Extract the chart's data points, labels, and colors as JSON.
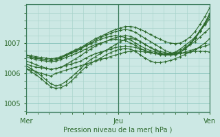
{
  "bg_color": "#cce8e4",
  "plot_bg_color": "#cce8e4",
  "line_color": "#2d6a2d",
  "grid_color": "#aad4cc",
  "tick_color": "#2d6a2d",
  "xlabel": "Pression niveau de la mer( hPa )",
  "ylim": [
    1004.7,
    1008.3
  ],
  "yticks": [
    1005,
    1006,
    1007
  ],
  "day_ticks": [
    0,
    24,
    48
  ],
  "day_labels": [
    "Mer",
    "Jeu",
    "Ven"
  ],
  "vlines": [
    0,
    24,
    48
  ],
  "series": [
    [
      1006.15,
      1006.1,
      1006.05,
      1006.0,
      1005.95,
      1005.9,
      1006.0,
      1006.05,
      1006.1,
      1006.15,
      1006.2,
      1006.25,
      1006.3,
      1006.35,
      1006.4,
      1006.45,
      1006.5,
      1006.55,
      1006.6,
      1006.65,
      1006.7,
      1006.72,
      1006.75,
      1006.72,
      1006.7,
      1006.68,
      1006.65,
      1006.63,
      1006.62,
      1006.62,
      1006.63,
      1006.65,
      1006.67,
      1006.7,
      1006.72,
      1006.73,
      1006.72,
      1006.7
    ],
    [
      1006.3,
      1006.25,
      1006.2,
      1006.18,
      1006.15,
      1006.13,
      1006.15,
      1006.2,
      1006.25,
      1006.3,
      1006.35,
      1006.4,
      1006.5,
      1006.58,
      1006.65,
      1006.7,
      1006.75,
      1006.8,
      1006.85,
      1006.88,
      1006.9,
      1006.88,
      1006.85,
      1006.8,
      1006.75,
      1006.7,
      1006.65,
      1006.62,
      1006.6,
      1006.6,
      1006.62,
      1006.65,
      1006.7,
      1006.75,
      1006.8,
      1006.85,
      1006.9,
      1006.95
    ],
    [
      1006.55,
      1006.5,
      1006.45,
      1006.42,
      1006.4,
      1006.38,
      1006.4,
      1006.45,
      1006.52,
      1006.58,
      1006.65,
      1006.72,
      1006.8,
      1006.88,
      1006.95,
      1007.0,
      1007.05,
      1007.1,
      1007.12,
      1007.1,
      1007.08,
      1007.0,
      1006.92,
      1006.82,
      1006.75,
      1006.68,
      1006.65,
      1006.63,
      1006.62,
      1006.65,
      1006.68,
      1006.75,
      1006.85,
      1006.95,
      1007.05,
      1007.2,
      1007.35,
      1007.5
    ],
    [
      1006.6,
      1006.55,
      1006.5,
      1006.47,
      1006.45,
      1006.43,
      1006.45,
      1006.5,
      1006.58,
      1006.65,
      1006.72,
      1006.8,
      1006.9,
      1006.97,
      1007.05,
      1007.12,
      1007.18,
      1007.22,
      1007.25,
      1007.22,
      1007.18,
      1007.1,
      1007.0,
      1006.9,
      1006.82,
      1006.75,
      1006.7,
      1006.65,
      1006.63,
      1006.65,
      1006.7,
      1006.8,
      1006.92,
      1007.05,
      1007.2,
      1007.4,
      1007.6,
      1007.8
    ],
    [
      1006.15,
      1006.05,
      1005.95,
      1005.82,
      1005.68,
      1005.55,
      1005.5,
      1005.52,
      1005.6,
      1005.72,
      1005.88,
      1006.05,
      1006.2,
      1006.32,
      1006.42,
      1006.5,
      1006.6,
      1006.68,
      1006.75,
      1006.8,
      1006.82,
      1006.8,
      1006.72,
      1006.6,
      1006.5,
      1006.4,
      1006.35,
      1006.35,
      1006.38,
      1006.42,
      1006.48,
      1006.55,
      1006.62,
      1006.7,
      1006.78,
      1006.88,
      1007.0,
      1007.15
    ],
    [
      1006.6,
      1006.55,
      1006.5,
      1006.48,
      1006.45,
      1006.42,
      1006.45,
      1006.52,
      1006.6,
      1006.68,
      1006.75,
      1006.82,
      1006.92,
      1007.0,
      1007.1,
      1007.18,
      1007.25,
      1007.32,
      1007.38,
      1007.42,
      1007.45,
      1007.42,
      1007.35,
      1007.25,
      1007.15,
      1007.05,
      1006.95,
      1006.85,
      1006.75,
      1006.68,
      1006.65,
      1006.7,
      1006.8,
      1006.95,
      1007.15,
      1007.4,
      1007.65,
      1007.95
    ],
    [
      1006.25,
      1006.15,
      1006.05,
      1005.92,
      1005.78,
      1005.65,
      1005.58,
      1005.62,
      1005.72,
      1005.85,
      1006.0,
      1006.15,
      1006.32,
      1006.45,
      1006.55,
      1006.65,
      1006.75,
      1006.85,
      1006.95,
      1007.05,
      1007.12,
      1007.15,
      1007.12,
      1007.05,
      1006.95,
      1006.85,
      1006.75,
      1006.68,
      1006.62,
      1006.6,
      1006.62,
      1006.7,
      1006.82,
      1006.98,
      1007.18,
      1007.42,
      1007.68,
      1008.0
    ],
    [
      1006.4,
      1006.35,
      1006.28,
      1006.22,
      1006.17,
      1006.13,
      1006.15,
      1006.2,
      1006.28,
      1006.38,
      1006.48,
      1006.58,
      1006.7,
      1006.8,
      1006.9,
      1006.98,
      1007.05,
      1007.12,
      1007.18,
      1007.22,
      1007.25,
      1007.22,
      1007.15,
      1007.05,
      1006.95,
      1006.85,
      1006.78,
      1006.72,
      1006.68,
      1006.65,
      1006.65,
      1006.7,
      1006.8,
      1006.95,
      1007.15,
      1007.38,
      1007.62,
      1007.88
    ],
    [
      1006.6,
      1006.58,
      1006.55,
      1006.52,
      1006.5,
      1006.48,
      1006.5,
      1006.55,
      1006.62,
      1006.7,
      1006.78,
      1006.85,
      1006.95,
      1007.05,
      1007.15,
      1007.22,
      1007.3,
      1007.38,
      1007.45,
      1007.5,
      1007.55,
      1007.55,
      1007.52,
      1007.45,
      1007.38,
      1007.28,
      1007.2,
      1007.12,
      1007.05,
      1007.0,
      1006.98,
      1007.0,
      1007.08,
      1007.2,
      1007.38,
      1007.62,
      1007.88,
      1008.18
    ]
  ]
}
